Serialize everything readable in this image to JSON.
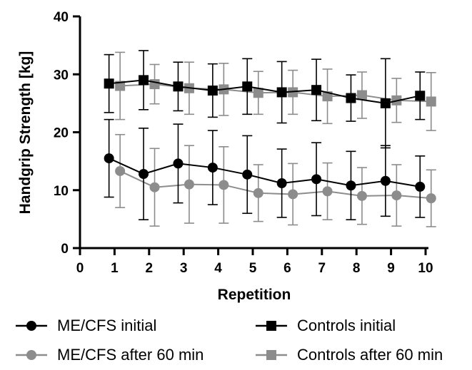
{
  "chart_data": {
    "type": "line",
    "xlabel": "Repetition",
    "ylabel": "Handgrip Strength [kg]",
    "xlim": [
      0,
      10
    ],
    "ylim": [
      0,
      40
    ],
    "x_ticks": [
      "0",
      "1",
      "2",
      "3",
      "4",
      "5",
      "6",
      "7",
      "8",
      "9",
      "10"
    ],
    "y_ticks": [
      "0",
      "10",
      "20",
      "30",
      "40"
    ],
    "grid": false,
    "legend_position": "bottom",
    "series": [
      {
        "name": "ME/CFS initial",
        "marker": "circle",
        "color": "#000000",
        "x": [
          1,
          2,
          3,
          4,
          5,
          6,
          7,
          8,
          9,
          10
        ],
        "values": [
          15.5,
          12.8,
          14.6,
          13.9,
          12.7,
          11.2,
          11.9,
          10.8,
          11.6,
          10.6
        ],
        "error": [
          6.7,
          7.9,
          6.8,
          6.4,
          6.7,
          5.9,
          6.3,
          5.9,
          6.1,
          5.3
        ]
      },
      {
        "name": "ME/CFS after 60 min",
        "marker": "circle",
        "color": "#8c8c8c",
        "x": [
          1,
          2,
          3,
          4,
          5,
          6,
          7,
          8,
          9,
          10
        ],
        "values": [
          13.3,
          10.5,
          11.0,
          10.9,
          9.5,
          9.3,
          9.8,
          9.0,
          9.1,
          8.6
        ],
        "error": [
          6.3,
          6.7,
          6.7,
          6.6,
          4.9,
          5.3,
          4.9,
          4.9,
          5.3,
          4.9
        ]
      },
      {
        "name": "Controls initial",
        "marker": "square",
        "color": "#000000",
        "x": [
          1,
          2,
          3,
          4,
          5,
          6,
          7,
          8,
          9,
          10
        ],
        "values": [
          28.4,
          29.0,
          27.9,
          27.2,
          27.9,
          26.9,
          27.3,
          25.9,
          25.0,
          26.3
        ],
        "error": [
          5.0,
          5.1,
          4.2,
          4.6,
          4.8,
          5.3,
          5.3,
          4.0,
          7.7,
          4.1
        ]
      },
      {
        "name": "Controls after 60 min",
        "marker": "square",
        "color": "#8c8c8c",
        "x": [
          1,
          2,
          3,
          4,
          5,
          6,
          7,
          8,
          9,
          10
        ],
        "values": [
          28.0,
          28.3,
          27.6,
          27.4,
          26.8,
          26.9,
          26.2,
          26.4,
          25.5,
          25.3
        ],
        "error": [
          5.8,
          3.4,
          4.5,
          4.5,
          3.7,
          3.8,
          4.7,
          4.0,
          3.8,
          5.0
        ]
      }
    ]
  }
}
